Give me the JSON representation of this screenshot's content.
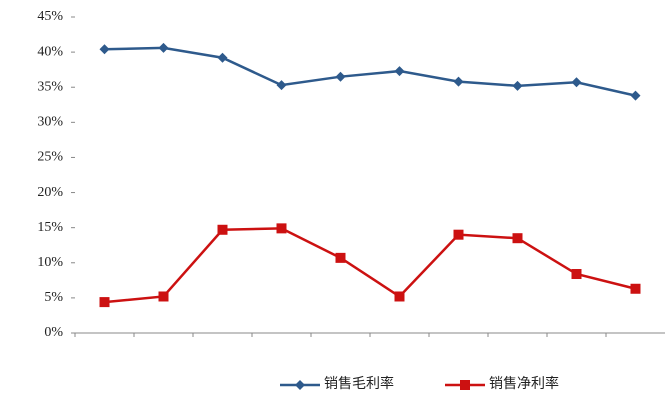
{
  "chart_data": {
    "type": "line",
    "categories": [
      null,
      null,
      null,
      null,
      null,
      null,
      null,
      null,
      null,
      null
    ],
    "series": [
      {
        "name": "销售毛利率",
        "color": "#2e5a8c",
        "marker": "diamond",
        "values": [
          40.4,
          40.6,
          39.2,
          35.3,
          36.5,
          37.3,
          35.8,
          35.2,
          35.7,
          33.8
        ]
      },
      {
        "name": "销售净利率",
        "color": "#cc1111",
        "marker": "square",
        "values": [
          4.4,
          5.2,
          14.7,
          14.9,
          10.7,
          5.2,
          14.0,
          13.5,
          8.4,
          6.3
        ]
      }
    ],
    "ylim": [
      0,
      45
    ],
    "yticks": [
      {
        "value": 0,
        "label": "0%"
      },
      {
        "value": 5,
        "label": "5%"
      },
      {
        "value": 10,
        "label": "10%"
      },
      {
        "value": 15,
        "label": "15%"
      },
      {
        "value": 20,
        "label": "20%"
      },
      {
        "value": 25,
        "label": "25%"
      },
      {
        "value": 30,
        "label": "30%"
      },
      {
        "value": 35,
        "label": "35%"
      },
      {
        "value": 40,
        "label": "40%"
      },
      {
        "value": 45,
        "label": "45%"
      }
    ],
    "legend": "bottom"
  }
}
